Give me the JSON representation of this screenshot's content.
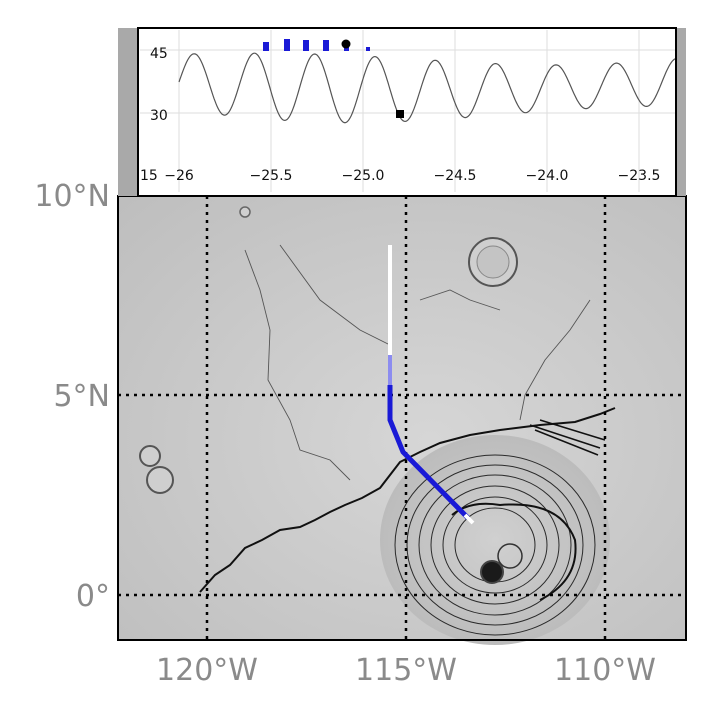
{
  "map": {
    "lat_labels": [
      "10°N",
      "5°N",
      "0°"
    ],
    "lon_labels": [
      "120°W",
      "115°W",
      "110°W"
    ]
  },
  "inset": {
    "y_tick_labels": [
      "45",
      "30",
      "15"
    ],
    "x_tick_labels": [
      "−26",
      "−25.5",
      "−25.0",
      "−24.5",
      "−24.0",
      "−23.5"
    ]
  },
  "colors": {
    "track_blue": "#1a1ad6",
    "track_light_blue": "#8c8cf0",
    "track_white": "#ffffff",
    "terrain_gray": "#c9c9c9",
    "graticule": "#000000",
    "label_gray": "#8a8a8a"
  }
}
